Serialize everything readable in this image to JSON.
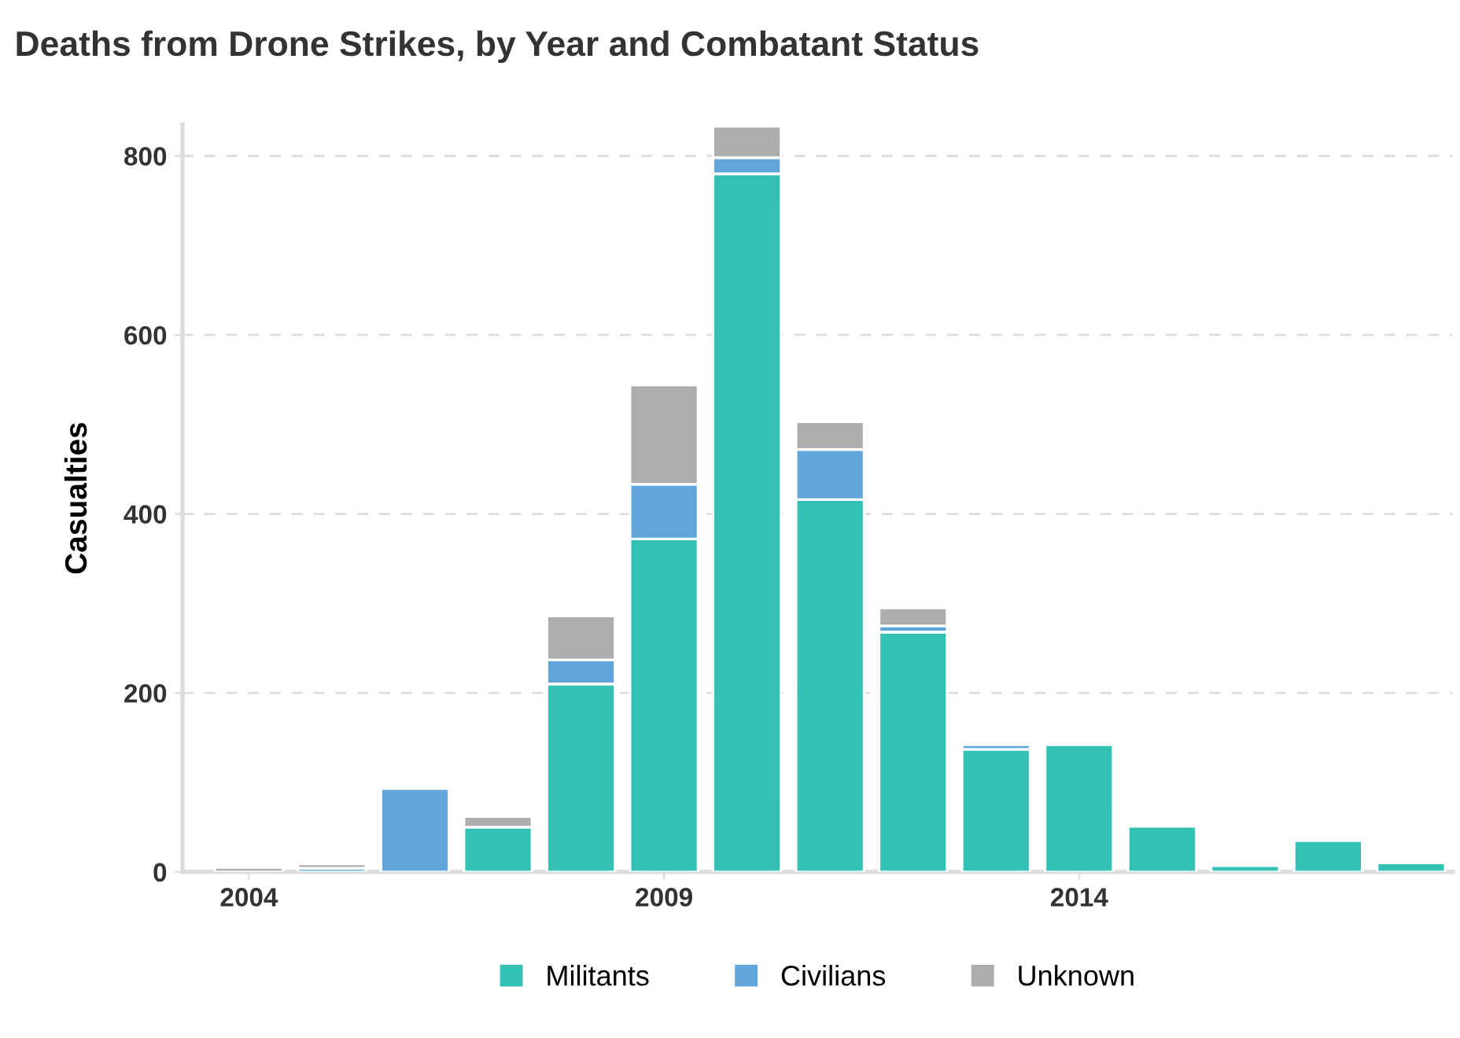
{
  "chart_data": {
    "type": "bar",
    "title": "Deaths from Drone Strikes, by Year and Combatant Status",
    "ylabel": "Casualties",
    "stacked": true,
    "x": [
      2004,
      2005,
      2006,
      2007,
      2008,
      2009,
      2010,
      2011,
      2012,
      2013,
      2014,
      2015,
      2016,
      2017,
      2018
    ],
    "series": [
      {
        "name": "Militants",
        "color": "#33c1b6",
        "values": [
          0,
          null,
          null,
          50,
          210,
          372,
          780,
          416,
          268,
          137,
          142,
          51,
          7,
          35,
          10
        ]
      },
      {
        "name": "Civilians",
        "color": "#61a5da",
        "values": [
          0,
          4,
          93,
          0,
          27,
          61,
          18,
          56,
          7,
          5,
          0,
          0,
          0,
          0,
          0
        ]
      },
      {
        "name": "Unknown",
        "color": "#acadaf",
        "values": [
          5,
          5,
          0,
          12,
          49,
          111,
          35,
          31,
          20,
          0,
          0,
          0,
          0,
          0,
          0
        ]
      }
    ],
    "xlim": [
      2003.2,
      2018.5
    ],
    "xticks": [
      2004,
      2009,
      2014
    ],
    "ylim": [
      0,
      835
    ],
    "yticks": [
      0,
      200,
      400,
      600,
      800
    ],
    "grid": "y",
    "legend": "bottom"
  }
}
